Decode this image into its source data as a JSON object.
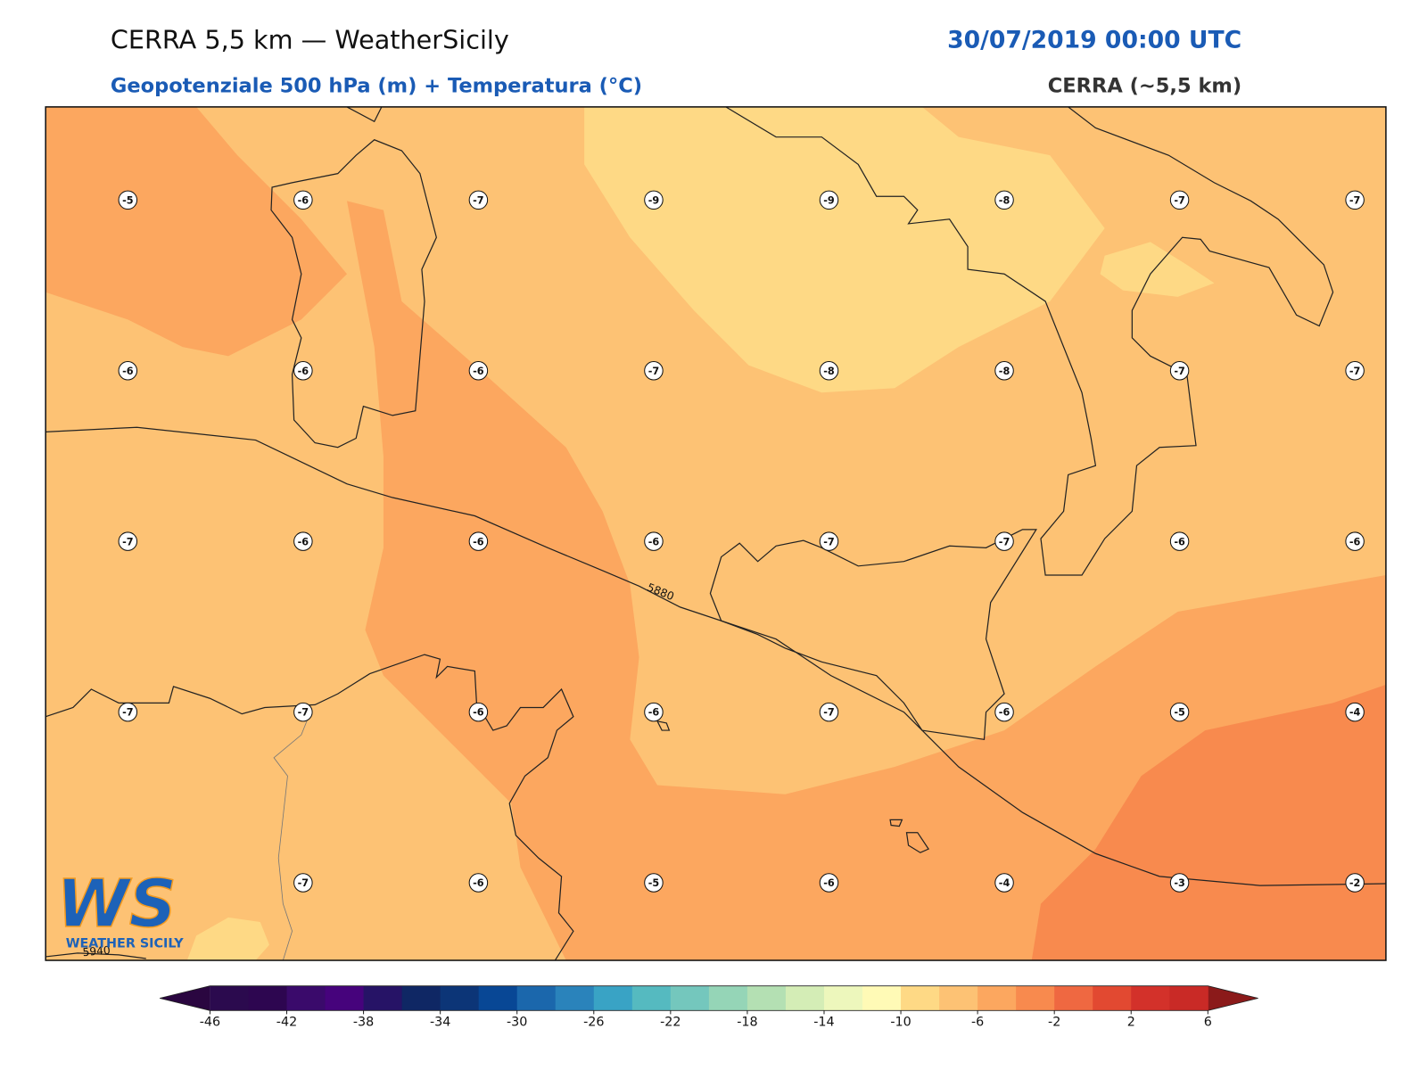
{
  "header": {
    "title": "CERRA 5,5 km — WeatherSicily",
    "subtitle": "Geopotenziale 500 hPa (m) + Temperatura (°C)",
    "valid_time": "30/07/2019 00:00 UTC",
    "model_label": "CERRA (~5,5 km)"
  },
  "map": {
    "station_values": [
      [
        -5,
        -6,
        -7,
        -9,
        -9,
        -8,
        -7,
        -7
      ],
      [
        -6,
        -6,
        -6,
        -7,
        -8,
        -8,
        -7,
        -7
      ],
      [
        -7,
        -6,
        -6,
        -6,
        -7,
        -7,
        -6,
        -6
      ],
      [
        -7,
        -7,
        -6,
        -6,
        -7,
        -6,
        -5,
        -4
      ],
      [
        null,
        -7,
        -6,
        -5,
        -6,
        -4,
        -3,
        -2
      ]
    ],
    "contour_labels": [
      5880,
      5940
    ]
  },
  "colorbar": {
    "range": [
      -46,
      6
    ],
    "ticks": [
      -46,
      -42,
      -38,
      -34,
      -30,
      -26,
      -22,
      -18,
      -14,
      -10,
      -6,
      -2,
      2,
      6
    ],
    "colors": [
      "#2b0a4e",
      "#2d0650",
      "#3a0a6b",
      "#46037c",
      "#261366",
      "#0f2764",
      "#0c3577",
      "#084795",
      "#1b67ac",
      "#2a83bb",
      "#39a3c5",
      "#55bac0",
      "#74c7bd",
      "#95d5b7",
      "#b4e0b3",
      "#d4edb6",
      "#edf7bc",
      "#fffab6",
      "#fed985",
      "#fdc274",
      "#fca75f",
      "#f88a4e",
      "#ef6841",
      "#e24931",
      "#d3312a",
      "#c92a26"
    ],
    "extend_colors": [
      "#2a0640",
      "#8b1a1a"
    ]
  },
  "logo": {
    "mark": "WS",
    "name": "WEATHER SICILY"
  }
}
